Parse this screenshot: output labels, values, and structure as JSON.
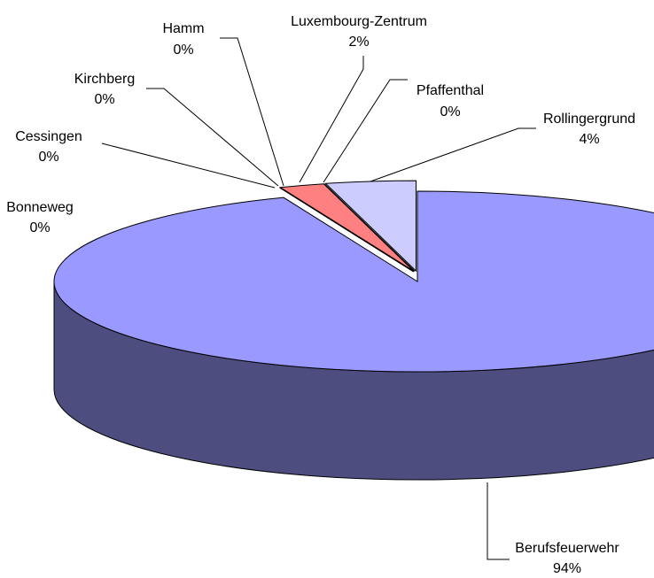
{
  "chart_data": {
    "type": "pie",
    "categories": [
      "Berufsfeuerwehr",
      "Bonneweg",
      "Cessingen",
      "Kirchberg",
      "Hamm",
      "Luxembourg-Zentrum",
      "Pfaffenthal",
      "Rollingergrund"
    ],
    "values": [
      94,
      0,
      0,
      0,
      0,
      2,
      0,
      4
    ],
    "value_labels": [
      "94%",
      "0%",
      "0%",
      "0%",
      "0%",
      "2%",
      "0%",
      "4%"
    ],
    "colors": [
      "#9999ff",
      "#993366",
      "#ffffcc",
      "#ccffff",
      "#660066",
      "#ff8080",
      "#0066cc",
      "#ccccff"
    ]
  }
}
